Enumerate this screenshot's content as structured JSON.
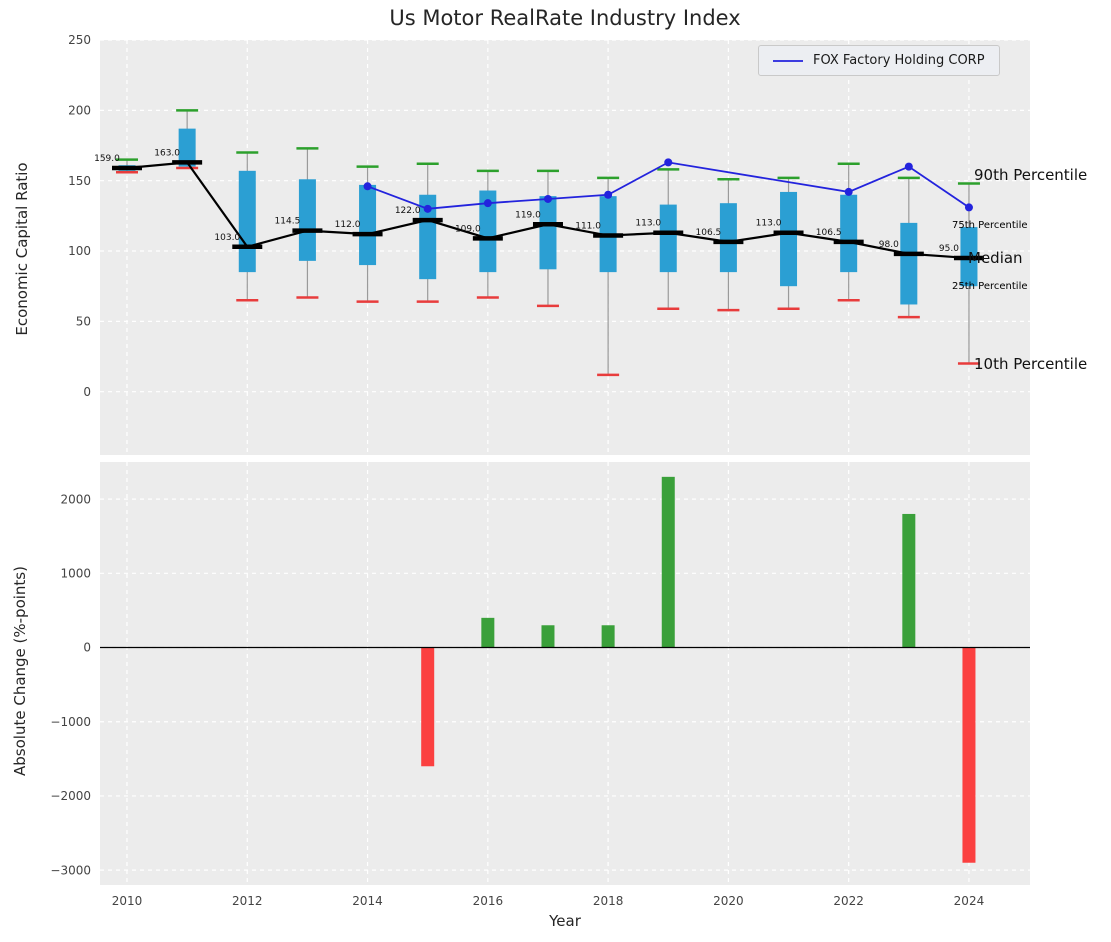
{
  "title": "Us Motor RealRate Industry Index",
  "legend": {
    "label": "FOX Factory Holding CORP"
  },
  "top_axes": {
    "ylabel": "Economic Capital Ratio",
    "yticks": [
      0,
      50,
      100,
      150,
      200,
      250
    ],
    "ylim": [
      -45,
      250
    ]
  },
  "bottom_axes": {
    "ylabel": "Absolute Change (%-points)",
    "xlabel": "Year",
    "yticks": [
      -3000,
      -2000,
      -1000,
      0,
      1000,
      2000
    ],
    "ylim": [
      -3200,
      2500
    ],
    "xticks": [
      2010,
      2012,
      2014,
      2016,
      2018,
      2020,
      2022,
      2024
    ]
  },
  "annotations": {
    "p90": "90th Percentile",
    "p75": "75th Percentile",
    "median": "Median",
    "p25": "25th Percentile",
    "p10": "10th Percentile"
  },
  "colors": {
    "box": "#2b9fd3",
    "median": "#000000",
    "p90_cap": "#2ca02c",
    "p10_cap": "#e83c3c",
    "bar_up": "#3aa03a",
    "bar_down": "#fb4040",
    "fox_line": "#2323dd",
    "whisker": "#9a9a9a",
    "grid": "#ffffff",
    "axes_bg": "#ececec",
    "tick_text": "#444444",
    "annotation_accent": "#25aacd"
  },
  "chart_data": {
    "type": "box+line+bar",
    "top_chart": {
      "type": "boxplot-with-line",
      "ylabel": "Economic Capital Ratio",
      "boxes": [
        {
          "year": 2010,
          "p10": 156,
          "p25": 157,
          "median": 159.0,
          "p75": 161,
          "p90": 165,
          "label": "159.0"
        },
        {
          "year": 2011,
          "p10": 159,
          "p25": 160,
          "median": 163.0,
          "p75": 187,
          "p90": 200,
          "label": "163.0"
        },
        {
          "year": 2012,
          "p10": 65,
          "p25": 85,
          "median": 103.0,
          "p75": 157,
          "p90": 170,
          "label": "103.0"
        },
        {
          "year": 2013,
          "p10": 67,
          "p25": 93,
          "median": 114.5,
          "p75": 151,
          "p90": 173,
          "label": "114.5"
        },
        {
          "year": 2014,
          "p10": 64,
          "p25": 90,
          "median": 112.0,
          "p75": 147,
          "p90": 160,
          "label": "112.0"
        },
        {
          "year": 2015,
          "p10": 64,
          "p25": 80,
          "median": 122.0,
          "p75": 140,
          "p90": 162,
          "label": "122.0"
        },
        {
          "year": 2016,
          "p10": 67,
          "p25": 85,
          "median": 109.0,
          "p75": 143,
          "p90": 157,
          "label": "109.0"
        },
        {
          "year": 2017,
          "p10": 61,
          "p25": 87,
          "median": 119.0,
          "p75": 139,
          "p90": 157,
          "label": "119.0"
        },
        {
          "year": 2018,
          "p10": 12,
          "p25": 85,
          "median": 111.0,
          "p75": 139,
          "p90": 152,
          "label": "111.0"
        },
        {
          "year": 2019,
          "p10": 59,
          "p25": 85,
          "median": 113.0,
          "p75": 133,
          "p90": 158,
          "label": "113.0"
        },
        {
          "year": 2020,
          "p10": 58,
          "p25": 85,
          "median": 106.5,
          "p75": 134,
          "p90": 151,
          "label": "106.5"
        },
        {
          "year": 2021,
          "p10": 59,
          "p25": 75,
          "median": 113.0,
          "p75": 142,
          "p90": 152,
          "label": "113.0"
        },
        {
          "year": 2022,
          "p10": 65,
          "p25": 85,
          "median": 106.5,
          "p75": 140,
          "p90": 162,
          "label": "106.5"
        },
        {
          "year": 2023,
          "p10": 53,
          "p25": 62,
          "median": 98.0,
          "p75": 120,
          "p90": 152,
          "label": "98.0"
        },
        {
          "year": 2024,
          "p10": 20,
          "p25": 75,
          "median": 95.0,
          "p75": 117,
          "p90": 148,
          "label": "95.0"
        }
      ],
      "fox_series": {
        "name": "FOX Factory Holding CORP",
        "points": [
          {
            "year": 2014,
            "value": 146
          },
          {
            "year": 2015,
            "value": 130
          },
          {
            "year": 2016,
            "value": 134
          },
          {
            "year": 2017,
            "value": 137
          },
          {
            "year": 2018,
            "value": 140
          },
          {
            "year": 2019,
            "value": 163
          },
          {
            "year": 2022,
            "value": 142
          },
          {
            "year": 2023,
            "value": 160
          },
          {
            "year": 2024,
            "value": 131
          }
        ]
      }
    },
    "bottom_chart": {
      "type": "bar",
      "ylabel": "Absolute Change (%-points)",
      "xlabel": "Year",
      "points": [
        {
          "year": 2015,
          "value": -1600
        },
        {
          "year": 2016,
          "value": 400
        },
        {
          "year": 2017,
          "value": 300
        },
        {
          "year": 2018,
          "value": 300
        },
        {
          "year": 2019,
          "value": 2300
        },
        {
          "year": 2023,
          "value": 1800
        },
        {
          "year": 2024,
          "value": -2900
        }
      ]
    }
  }
}
